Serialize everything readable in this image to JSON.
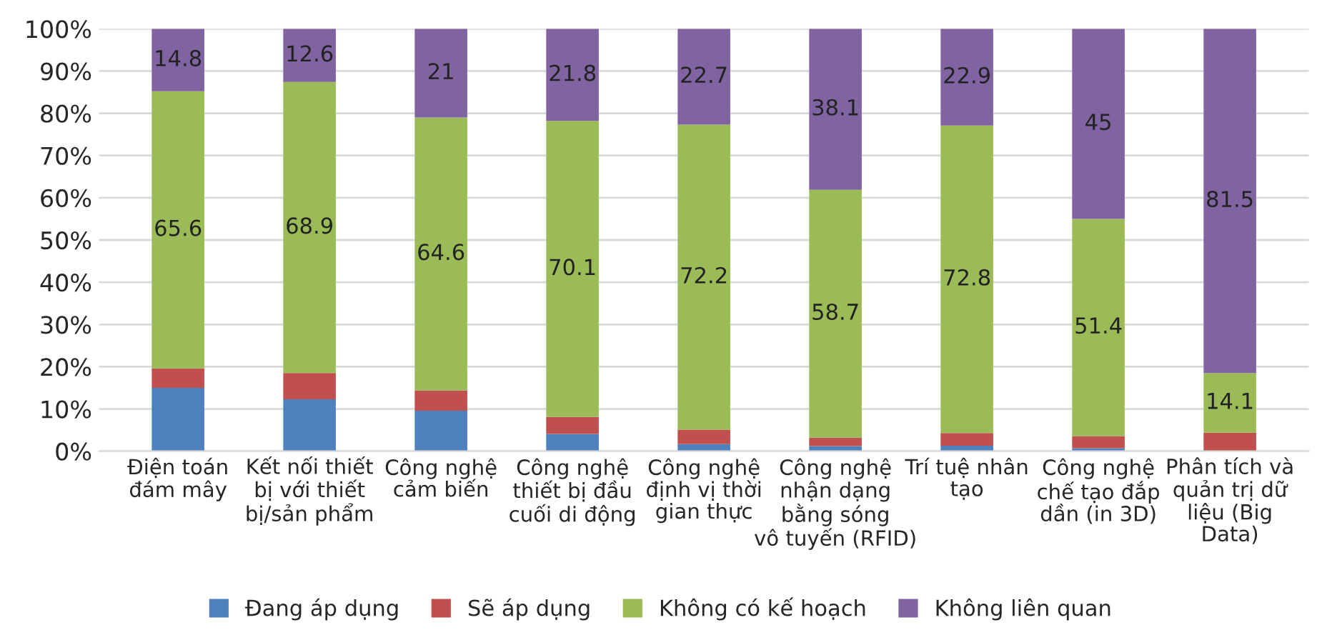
{
  "chart_data": {
    "type": "bar",
    "stacked": true,
    "categories": [
      "Điện toán\nđám mây",
      "Kết nối thiết\nbị với thiết\nbị/sản phẩm",
      "Công nghệ\ncảm biến",
      "Công nghệ\nthiết bị đầu\ncuối di động",
      "Công nghệ\nđịnh vị thời\ngian thực",
      "Công nghệ\nnhận dạng\nbằng sóng\nvô tuyến (RFID)",
      "Trí tuệ nhân\ntạo",
      "Công nghệ\nchế tạo đắp\ndần (in 3D)",
      "Phân tích và\nquản trị dữ\nliệu (Big\nData)"
    ],
    "series": [
      {
        "name": "Đang áp dụng",
        "color": "#4f81bd",
        "values": [
          15,
          12.3,
          9.6,
          4.1,
          1.7,
          1.2,
          1.3,
          0.7,
          null
        ]
      },
      {
        "name": "Sẽ áp dụng",
        "color": "#c0504d",
        "values": [
          4.6,
          6.2,
          4.8,
          4.0,
          3.4,
          2.0,
          3.0,
          2.9,
          4.4
        ]
      },
      {
        "name": "Không có kế hoạch",
        "color": "#9bbb59",
        "values": [
          65.6,
          68.9,
          64.6,
          70.1,
          72.2,
          58.7,
          72.8,
          51.4,
          14.1
        ],
        "value_labels": [
          "65.6",
          "68.9",
          "64.6",
          "70.1",
          "72.2",
          "58.7",
          "72.8",
          "51.4",
          "14.1"
        ]
      },
      {
        "name": "Không liên quan",
        "color": "#8064a2",
        "values": [
          14.8,
          12.6,
          21,
          21.8,
          22.7,
          38.1,
          22.9,
          45,
          81.5
        ],
        "value_labels": [
          "14.8",
          "12.6",
          "21",
          "21.8",
          "22.7",
          "38.1",
          "22.9",
          "45",
          "81.5"
        ]
      }
    ],
    "ylim": [
      0,
      100
    ],
    "yticks": [
      {
        "value": 0,
        "label": "0%"
      },
      {
        "value": 10,
        "label": "10%"
      },
      {
        "value": 20,
        "label": "20%"
      },
      {
        "value": 30,
        "label": "30%"
      },
      {
        "value": 40,
        "label": "40%"
      },
      {
        "value": 50,
        "label": "50%"
      },
      {
        "value": 60,
        "label": "60%"
      },
      {
        "value": 70,
        "label": "70%"
      },
      {
        "value": 80,
        "label": "80%"
      },
      {
        "value": 90,
        "label": "90%"
      },
      {
        "value": 100,
        "label": "100%"
      }
    ],
    "grid": "y",
    "legend": "bottom"
  }
}
